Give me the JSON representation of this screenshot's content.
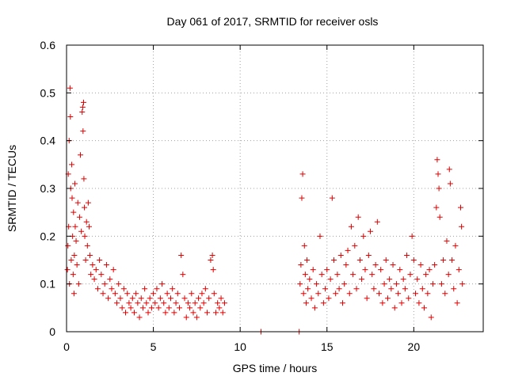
{
  "chart_data": {
    "type": "scatter",
    "title": "Day 061 of 2017, SRMTID for receiver osls",
    "xlabel": "GPS time / hours",
    "ylabel": "SRMTID / TECUs",
    "xlim": [
      0,
      24
    ],
    "ylim": [
      0,
      0.6
    ],
    "grid": true,
    "marker": "+",
    "color": "#e00000",
    "x_ticks": [
      "0",
      "5",
      "10",
      "15",
      "20"
    ],
    "x_tick_values": [
      0,
      5,
      10,
      15,
      20
    ],
    "y_ticks": [
      "0",
      "0.1",
      "0.2",
      "0.3",
      "0.4",
      "0.5",
      "0.6"
    ],
    "y_tick_values": [
      0,
      0.1,
      0.2,
      0.3,
      0.4,
      0.5,
      0.6
    ],
    "series": [
      {
        "name": "SRMTID",
        "points": [
          [
            0.05,
            0.13
          ],
          [
            0.08,
            0.18
          ],
          [
            0.1,
            0.33
          ],
          [
            0.12,
            0.22
          ],
          [
            0.15,
            0.4
          ],
          [
            0.17,
            0.1
          ],
          [
            0.2,
            0.51
          ],
          [
            0.22,
            0.45
          ],
          [
            0.24,
            0.3
          ],
          [
            0.27,
            0.15
          ],
          [
            0.3,
            0.35
          ],
          [
            0.32,
            0.28
          ],
          [
            0.35,
            0.2
          ],
          [
            0.38,
            0.12
          ],
          [
            0.4,
            0.25
          ],
          [
            0.43,
            0.08
          ],
          [
            0.45,
            0.16
          ],
          [
            0.48,
            0.31
          ],
          [
            0.5,
            0.22
          ],
          [
            0.55,
            0.19
          ],
          [
            0.6,
            0.14
          ],
          [
            0.65,
            0.27
          ],
          [
            0.7,
            0.1
          ],
          [
            0.75,
            0.24
          ],
          [
            0.8,
            0.37
          ],
          [
            0.85,
            0.21
          ],
          [
            0.9,
            0.46
          ],
          [
            0.93,
            0.47
          ],
          [
            0.95,
            0.42
          ],
          [
            0.98,
            0.48
          ],
          [
            1.0,
            0.32
          ],
          [
            1.03,
            0.26
          ],
          [
            1.05,
            0.2
          ],
          [
            1.1,
            0.15
          ],
          [
            1.15,
            0.23
          ],
          [
            1.2,
            0.18
          ],
          [
            1.25,
            0.27
          ],
          [
            1.3,
            0.22
          ],
          [
            1.35,
            0.16
          ],
          [
            1.4,
            0.12
          ],
          [
            1.5,
            0.14
          ],
          [
            1.6,
            0.11
          ],
          [
            1.7,
            0.13
          ],
          [
            1.8,
            0.09
          ],
          [
            1.9,
            0.15
          ],
          [
            2.0,
            0.12
          ],
          [
            2.1,
            0.08
          ],
          [
            2.2,
            0.1
          ],
          [
            2.3,
            0.14
          ],
          [
            2.4,
            0.07
          ],
          [
            2.5,
            0.11
          ],
          [
            2.6,
            0.09
          ],
          [
            2.7,
            0.13
          ],
          [
            2.8,
            0.08
          ],
          [
            2.9,
            0.06
          ],
          [
            3.0,
            0.1
          ],
          [
            3.1,
            0.07
          ],
          [
            3.2,
            0.05
          ],
          [
            3.3,
            0.09
          ],
          [
            3.4,
            0.04
          ],
          [
            3.5,
            0.08
          ],
          [
            3.6,
            0.06
          ],
          [
            3.7,
            0.05
          ],
          [
            3.8,
            0.07
          ],
          [
            3.9,
            0.04
          ],
          [
            4.0,
            0.08
          ],
          [
            4.1,
            0.06
          ],
          [
            4.2,
            0.03
          ],
          [
            4.3,
            0.07
          ],
          [
            4.4,
            0.05
          ],
          [
            4.5,
            0.09
          ],
          [
            4.6,
            0.06
          ],
          [
            4.7,
            0.04
          ],
          [
            4.8,
            0.07
          ],
          [
            4.9,
            0.05
          ],
          [
            5.0,
            0.08
          ],
          [
            5.1,
            0.06
          ],
          [
            5.2,
            0.09
          ],
          [
            5.3,
            0.05
          ],
          [
            5.4,
            0.07
          ],
          [
            5.5,
            0.1
          ],
          [
            5.6,
            0.06
          ],
          [
            5.7,
            0.04
          ],
          [
            5.8,
            0.08
          ],
          [
            5.9,
            0.05
          ],
          [
            6.0,
            0.07
          ],
          [
            6.1,
            0.09
          ],
          [
            6.2,
            0.04
          ],
          [
            6.3,
            0.06
          ],
          [
            6.4,
            0.08
          ],
          [
            6.5,
            0.05
          ],
          [
            6.6,
            0.16
          ],
          [
            6.7,
            0.12
          ],
          [
            6.8,
            0.07
          ],
          [
            6.9,
            0.03
          ],
          [
            7.0,
            0.06
          ],
          [
            7.1,
            0.05
          ],
          [
            7.2,
            0.08
          ],
          [
            7.3,
            0.04
          ],
          [
            7.4,
            0.06
          ],
          [
            7.5,
            0.03
          ],
          [
            7.6,
            0.07
          ],
          [
            7.7,
            0.05
          ],
          [
            7.8,
            0.08
          ],
          [
            7.9,
            0.06
          ],
          [
            8.0,
            0.09
          ],
          [
            8.1,
            0.04
          ],
          [
            8.2,
            0.07
          ],
          [
            8.3,
            0.15
          ],
          [
            8.4,
            0.16
          ],
          [
            8.45,
            0.13
          ],
          [
            8.5,
            0.08
          ],
          [
            8.6,
            0.04
          ],
          [
            8.7,
            0.06
          ],
          [
            8.8,
            0.05
          ],
          [
            8.9,
            0.07
          ],
          [
            9.0,
            0.04
          ],
          [
            9.1,
            0.06
          ],
          [
            11.2,
            0.0
          ],
          [
            13.4,
            0.0
          ],
          [
            13.45,
            0.1
          ],
          [
            13.5,
            0.14
          ],
          [
            13.55,
            0.28
          ],
          [
            13.6,
            0.33
          ],
          [
            13.65,
            0.08
          ],
          [
            13.7,
            0.18
          ],
          [
            13.75,
            0.12
          ],
          [
            13.8,
            0.06
          ],
          [
            13.85,
            0.15
          ],
          [
            13.9,
            0.09
          ],
          [
            14.0,
            0.11
          ],
          [
            14.1,
            0.07
          ],
          [
            14.2,
            0.13
          ],
          [
            14.3,
            0.05
          ],
          [
            14.4,
            0.1
          ],
          [
            14.5,
            0.08
          ],
          [
            14.6,
            0.2
          ],
          [
            14.7,
            0.12
          ],
          [
            14.8,
            0.06
          ],
          [
            14.9,
            0.09
          ],
          [
            15.0,
            0.13
          ],
          [
            15.1,
            0.07
          ],
          [
            15.2,
            0.11
          ],
          [
            15.3,
            0.28
          ],
          [
            15.4,
            0.15
          ],
          [
            15.5,
            0.08
          ],
          [
            15.6,
            0.12
          ],
          [
            15.7,
            0.09
          ],
          [
            15.8,
            0.16
          ],
          [
            15.9,
            0.06
          ],
          [
            16.0,
            0.1
          ],
          [
            16.1,
            0.14
          ],
          [
            16.2,
            0.17
          ],
          [
            16.3,
            0.08
          ],
          [
            16.4,
            0.22
          ],
          [
            16.5,
            0.12
          ],
          [
            16.6,
            0.18
          ],
          [
            16.7,
            0.09
          ],
          [
            16.8,
            0.24
          ],
          [
            16.9,
            0.15
          ],
          [
            17.0,
            0.11
          ],
          [
            17.1,
            0.2
          ],
          [
            17.2,
            0.13
          ],
          [
            17.3,
            0.07
          ],
          [
            17.4,
            0.16
          ],
          [
            17.5,
            0.21
          ],
          [
            17.6,
            0.12
          ],
          [
            17.7,
            0.09
          ],
          [
            17.8,
            0.14
          ],
          [
            17.9,
            0.23
          ],
          [
            18.0,
            0.08
          ],
          [
            18.1,
            0.13
          ],
          [
            18.2,
            0.06
          ],
          [
            18.3,
            0.1
          ],
          [
            18.4,
            0.15
          ],
          [
            18.5,
            0.07
          ],
          [
            18.6,
            0.11
          ],
          [
            18.7,
            0.09
          ],
          [
            18.8,
            0.14
          ],
          [
            18.9,
            0.05
          ],
          [
            19.0,
            0.1
          ],
          [
            19.1,
            0.08
          ],
          [
            19.2,
            0.13
          ],
          [
            19.3,
            0.06
          ],
          [
            19.4,
            0.11
          ],
          [
            19.5,
            0.09
          ],
          [
            19.6,
            0.16
          ],
          [
            19.7,
            0.07
          ],
          [
            19.8,
            0.12
          ],
          [
            19.9,
            0.2
          ],
          [
            20.0,
            0.15
          ],
          [
            20.1,
            0.08
          ],
          [
            20.2,
            0.11
          ],
          [
            20.3,
            0.06
          ],
          [
            20.4,
            0.14
          ],
          [
            20.5,
            0.09
          ],
          [
            20.6,
            0.05
          ],
          [
            20.7,
            0.12
          ],
          [
            20.8,
            0.08
          ],
          [
            20.9,
            0.13
          ],
          [
            21.0,
            0.03
          ],
          [
            21.1,
            0.1
          ],
          [
            21.2,
            0.14
          ],
          [
            21.3,
            0.26
          ],
          [
            21.35,
            0.36
          ],
          [
            21.4,
            0.33
          ],
          [
            21.45,
            0.3
          ],
          [
            21.5,
            0.24
          ],
          [
            21.6,
            0.1
          ],
          [
            21.7,
            0.15
          ],
          [
            21.8,
            0.08
          ],
          [
            21.9,
            0.19
          ],
          [
            22.0,
            0.12
          ],
          [
            22.05,
            0.34
          ],
          [
            22.1,
            0.31
          ],
          [
            22.2,
            0.15
          ],
          [
            22.3,
            0.09
          ],
          [
            22.4,
            0.18
          ],
          [
            22.5,
            0.06
          ],
          [
            22.6,
            0.13
          ],
          [
            22.7,
            0.26
          ],
          [
            22.75,
            0.22
          ],
          [
            22.8,
            0.1
          ]
        ]
      }
    ]
  }
}
